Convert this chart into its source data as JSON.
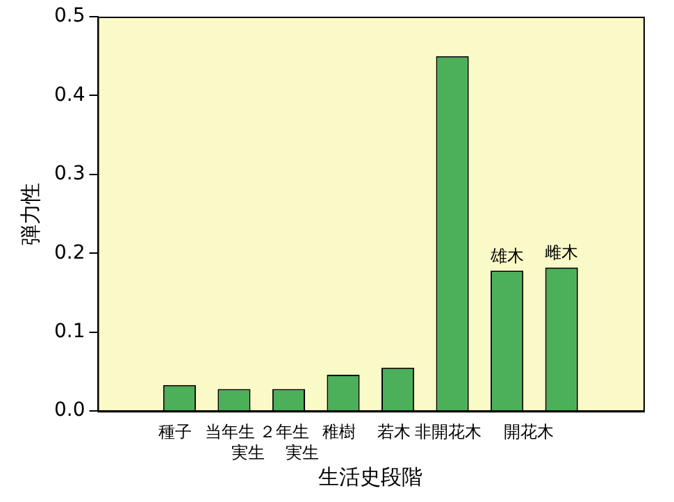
{
  "chart_data": {
    "type": "bar",
    "xlabel": "生活史段階",
    "ylabel": "弾力性",
    "categories": [
      "種子",
      "当年生実生",
      "２年生実生",
      "稚樹",
      "若木",
      "非開花木",
      "雄木",
      "雌木"
    ],
    "values": [
      0.033,
      0.028,
      0.028,
      0.046,
      0.055,
      0.45,
      0.178,
      0.182
    ],
    "color": "#4caf5a",
    "annotations": [
      "開花木"
    ],
    "ylim": [
      0,
      0.5
    ],
    "yticks": [
      {
        "value": 0,
        "label": "0.0"
      },
      0.1,
      0.2,
      0.3,
      0.4,
      0.5
    ],
    "grid": false,
    "legend": false
  }
}
